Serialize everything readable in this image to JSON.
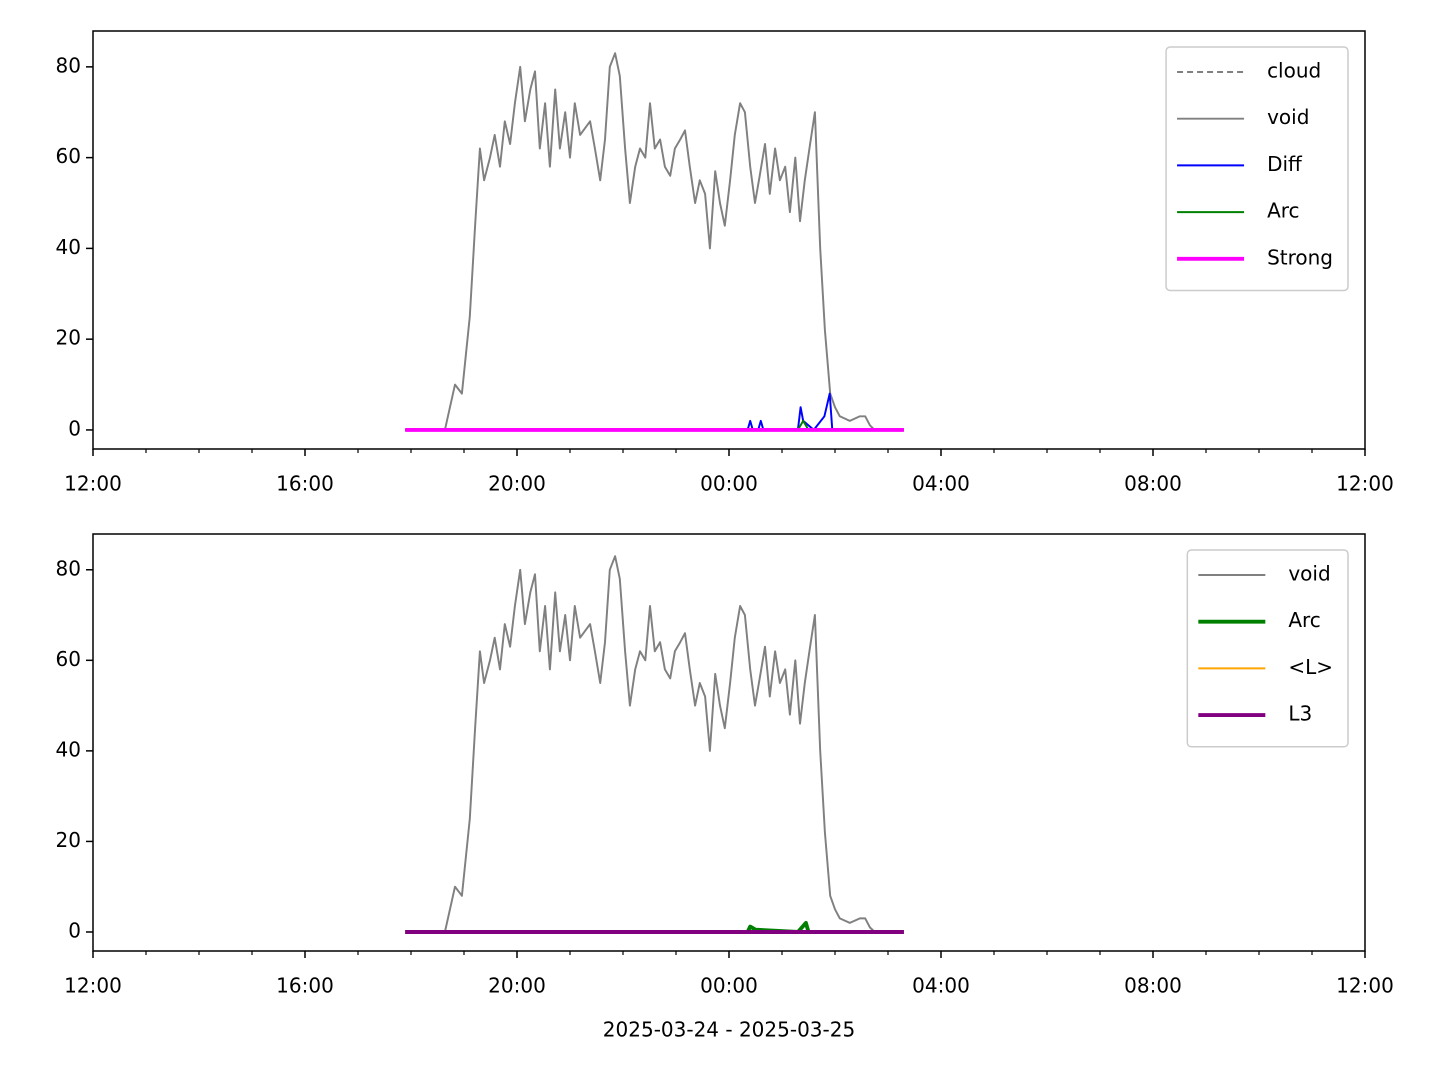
{
  "chart_data": [
    {
      "type": "line",
      "legend": "upper right",
      "xlim": [
        12,
        36
      ],
      "ylim": [
        -4.2,
        87.9
      ],
      "xticks": [
        {
          "value": 12,
          "label": "12:00"
        },
        {
          "value": 16,
          "label": "16:00"
        },
        {
          "value": 20,
          "label": "20:00"
        },
        {
          "value": 24,
          "label": "00:00"
        },
        {
          "value": 28,
          "label": "04:00"
        },
        {
          "value": 32,
          "label": "08:00"
        },
        {
          "value": 36,
          "label": "12:00"
        }
      ],
      "xminorticks": [
        13,
        14,
        15,
        17,
        18,
        19,
        21,
        22,
        23,
        25,
        26,
        27,
        29,
        30,
        31,
        33,
        34,
        35
      ],
      "yticks": [
        0,
        20,
        40,
        60,
        80
      ],
      "series": [
        {
          "name": "cloud",
          "color": "#808080",
          "style": "dashed",
          "width": 1.5,
          "x": [],
          "values": []
        },
        {
          "name": "void",
          "color": "#808080",
          "style": "solid",
          "width": 1.5,
          "x": [
            18.64,
            18.83,
            18.96,
            19.11,
            19.21,
            19.3,
            19.38,
            19.49,
            19.58,
            19.68,
            19.77,
            19.87,
            19.96,
            20.06,
            20.15,
            20.25,
            20.34,
            20.43,
            20.53,
            20.62,
            20.72,
            20.81,
            20.91,
            21.0,
            21.09,
            21.19,
            21.38,
            21.47,
            21.57,
            21.66,
            21.75,
            21.85,
            21.94,
            22.04,
            22.13,
            22.23,
            22.32,
            22.42,
            22.51,
            22.6,
            22.7,
            22.79,
            22.89,
            22.98,
            23.08,
            23.17,
            23.26,
            23.36,
            23.45,
            23.55,
            23.64,
            23.74,
            23.83,
            23.92,
            24.02,
            24.11,
            24.21,
            24.3,
            24.4,
            24.49,
            24.58,
            24.68,
            24.77,
            24.87,
            24.96,
            25.06,
            25.15,
            25.25,
            25.34,
            25.43,
            25.53,
            25.62,
            25.72,
            25.81,
            25.91,
            26.0,
            26.09,
            26.28,
            26.47,
            26.57,
            26.66,
            26.75
          ],
          "values": [
            0,
            10,
            8,
            25,
            45,
            62,
            55,
            60,
            65,
            58,
            68,
            63,
            72,
            80,
            68,
            75,
            79,
            62,
            72,
            58,
            75,
            62,
            70,
            60,
            72,
            65,
            68,
            62,
            55,
            64,
            80,
            83,
            78,
            62,
            50,
            58,
            62,
            60,
            72,
            62,
            64,
            58,
            56,
            62,
            64,
            66,
            58,
            50,
            55,
            52,
            40,
            57,
            50,
            45,
            55,
            65,
            72,
            70,
            58,
            50,
            56,
            63,
            52,
            62,
            55,
            58,
            48,
            60,
            46,
            55,
            63,
            70,
            40,
            22,
            8,
            5,
            3,
            2,
            3,
            3,
            1,
            0
          ]
        },
        {
          "name": "Diff",
          "color": "#0000ff",
          "style": "solid",
          "width": 1.5,
          "x": [
            17.89,
            24.35,
            24.4,
            24.45,
            24.55,
            24.6,
            24.65,
            25.3,
            25.35,
            25.4,
            25.5,
            25.6,
            25.8,
            25.9,
            25.95,
            26.0,
            27.3
          ],
          "values": [
            0,
            0,
            2,
            0,
            0,
            2,
            0,
            0,
            5,
            2,
            1,
            0,
            3,
            8,
            0,
            0,
            0
          ]
        },
        {
          "name": "Arc",
          "color": "#008000",
          "style": "solid",
          "width": 1.5,
          "x": [
            17.89,
            25.3,
            25.4,
            25.5,
            27.3
          ],
          "values": [
            0,
            0,
            2,
            0,
            0
          ]
        },
        {
          "name": "Strong",
          "color": "#ff00ff",
          "style": "solid",
          "width": 3,
          "x": [
            17.89,
            27.3
          ],
          "values": [
            0,
            0
          ]
        }
      ]
    },
    {
      "type": "line",
      "legend": "upper right",
      "xlabel": "2025-03-24 - 2025-03-25",
      "xlim": [
        12,
        36
      ],
      "ylim": [
        -4.2,
        87.9
      ],
      "xticks": [
        {
          "value": 12,
          "label": "12:00"
        },
        {
          "value": 16,
          "label": "16:00"
        },
        {
          "value": 20,
          "label": "20:00"
        },
        {
          "value": 24,
          "label": "00:00"
        },
        {
          "value": 28,
          "label": "04:00"
        },
        {
          "value": 32,
          "label": "08:00"
        },
        {
          "value": 36,
          "label": "12:00"
        }
      ],
      "xminorticks": [
        13,
        14,
        15,
        17,
        18,
        19,
        21,
        22,
        23,
        25,
        26,
        27,
        29,
        30,
        31,
        33,
        34,
        35
      ],
      "yticks": [
        0,
        20,
        40,
        60,
        80
      ],
      "series": [
        {
          "name": "void",
          "color": "#808080",
          "style": "solid",
          "width": 1.5,
          "x": [
            18.64,
            18.83,
            18.96,
            19.11,
            19.21,
            19.3,
            19.38,
            19.49,
            19.58,
            19.68,
            19.77,
            19.87,
            19.96,
            20.06,
            20.15,
            20.25,
            20.34,
            20.43,
            20.53,
            20.62,
            20.72,
            20.81,
            20.91,
            21.0,
            21.09,
            21.19,
            21.38,
            21.47,
            21.57,
            21.66,
            21.75,
            21.85,
            21.94,
            22.04,
            22.13,
            22.23,
            22.32,
            22.42,
            22.51,
            22.6,
            22.7,
            22.79,
            22.89,
            22.98,
            23.08,
            23.17,
            23.26,
            23.36,
            23.45,
            23.55,
            23.64,
            23.74,
            23.83,
            23.92,
            24.02,
            24.11,
            24.21,
            24.3,
            24.4,
            24.49,
            24.58,
            24.68,
            24.77,
            24.87,
            24.96,
            25.06,
            25.15,
            25.25,
            25.34,
            25.43,
            25.53,
            25.62,
            25.72,
            25.81,
            25.91,
            26.0,
            26.09,
            26.28,
            26.47,
            26.57,
            26.66,
            26.75
          ],
          "values": [
            0,
            10,
            8,
            25,
            45,
            62,
            55,
            60,
            65,
            58,
            68,
            63,
            72,
            80,
            68,
            75,
            79,
            62,
            72,
            58,
            75,
            62,
            70,
            60,
            72,
            65,
            68,
            62,
            55,
            64,
            80,
            83,
            78,
            62,
            50,
            58,
            62,
            60,
            72,
            62,
            64,
            58,
            56,
            62,
            64,
            66,
            58,
            50,
            55,
            52,
            40,
            57,
            50,
            45,
            55,
            65,
            72,
            70,
            58,
            50,
            56,
            63,
            52,
            62,
            55,
            58,
            48,
            60,
            46,
            55,
            63,
            70,
            40,
            22,
            8,
            5,
            3,
            2,
            3,
            3,
            1,
            0
          ]
        },
        {
          "name": "Arc",
          "color": "#008000",
          "style": "solid",
          "width": 3,
          "x": [
            17.89,
            24.35,
            24.4,
            24.5,
            25.3,
            25.45,
            25.5,
            27.3
          ],
          "values": [
            0,
            0,
            1.2,
            0.5,
            0,
            2,
            0,
            0
          ]
        },
        {
          "name": "<L>",
          "color": "#ffa500",
          "style": "solid",
          "width": 1.5,
          "x": [
            17.89,
            27.3
          ],
          "values": [
            0,
            0
          ]
        },
        {
          "name": "L3",
          "color": "#800080",
          "style": "solid",
          "width": 3,
          "x": [
            17.89,
            27.3
          ],
          "values": [
            0,
            0
          ]
        }
      ]
    }
  ]
}
